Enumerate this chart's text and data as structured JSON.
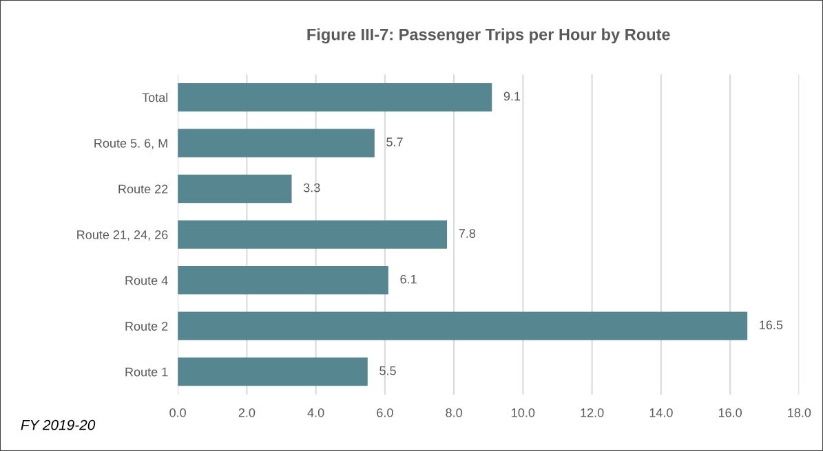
{
  "chart_data": {
    "type": "bar",
    "orientation": "horizontal",
    "title": "Figure III-7: Passenger Trips per Hour by Route",
    "categories": [
      "Total",
      "Route 5. 6, M",
      "Route 22",
      "Route 21, 24, 26",
      "Route 4",
      "Route 2",
      "Route 1"
    ],
    "values": [
      9.1,
      5.7,
      3.3,
      7.8,
      6.1,
      16.5,
      5.5
    ],
    "color": "#56868f",
    "xlim": [
      0,
      18
    ],
    "xticks": [
      {
        "value": 0,
        "label": "0.0"
      },
      {
        "value": 2,
        "label": "2.0"
      },
      {
        "value": 4,
        "label": "4.0"
      },
      {
        "value": 6,
        "label": "6.0"
      },
      {
        "value": 8,
        "label": "8.0"
      },
      {
        "value": 10,
        "label": "10.0"
      },
      {
        "value": 12,
        "label": "12.0"
      },
      {
        "value": 14,
        "label": "14.0"
      },
      {
        "value": 16,
        "label": "16.0"
      },
      {
        "value": 18,
        "label": "18.0"
      }
    ],
    "grid": "x",
    "data_labels": true,
    "annotations": [
      "FY 2019-20"
    ]
  }
}
